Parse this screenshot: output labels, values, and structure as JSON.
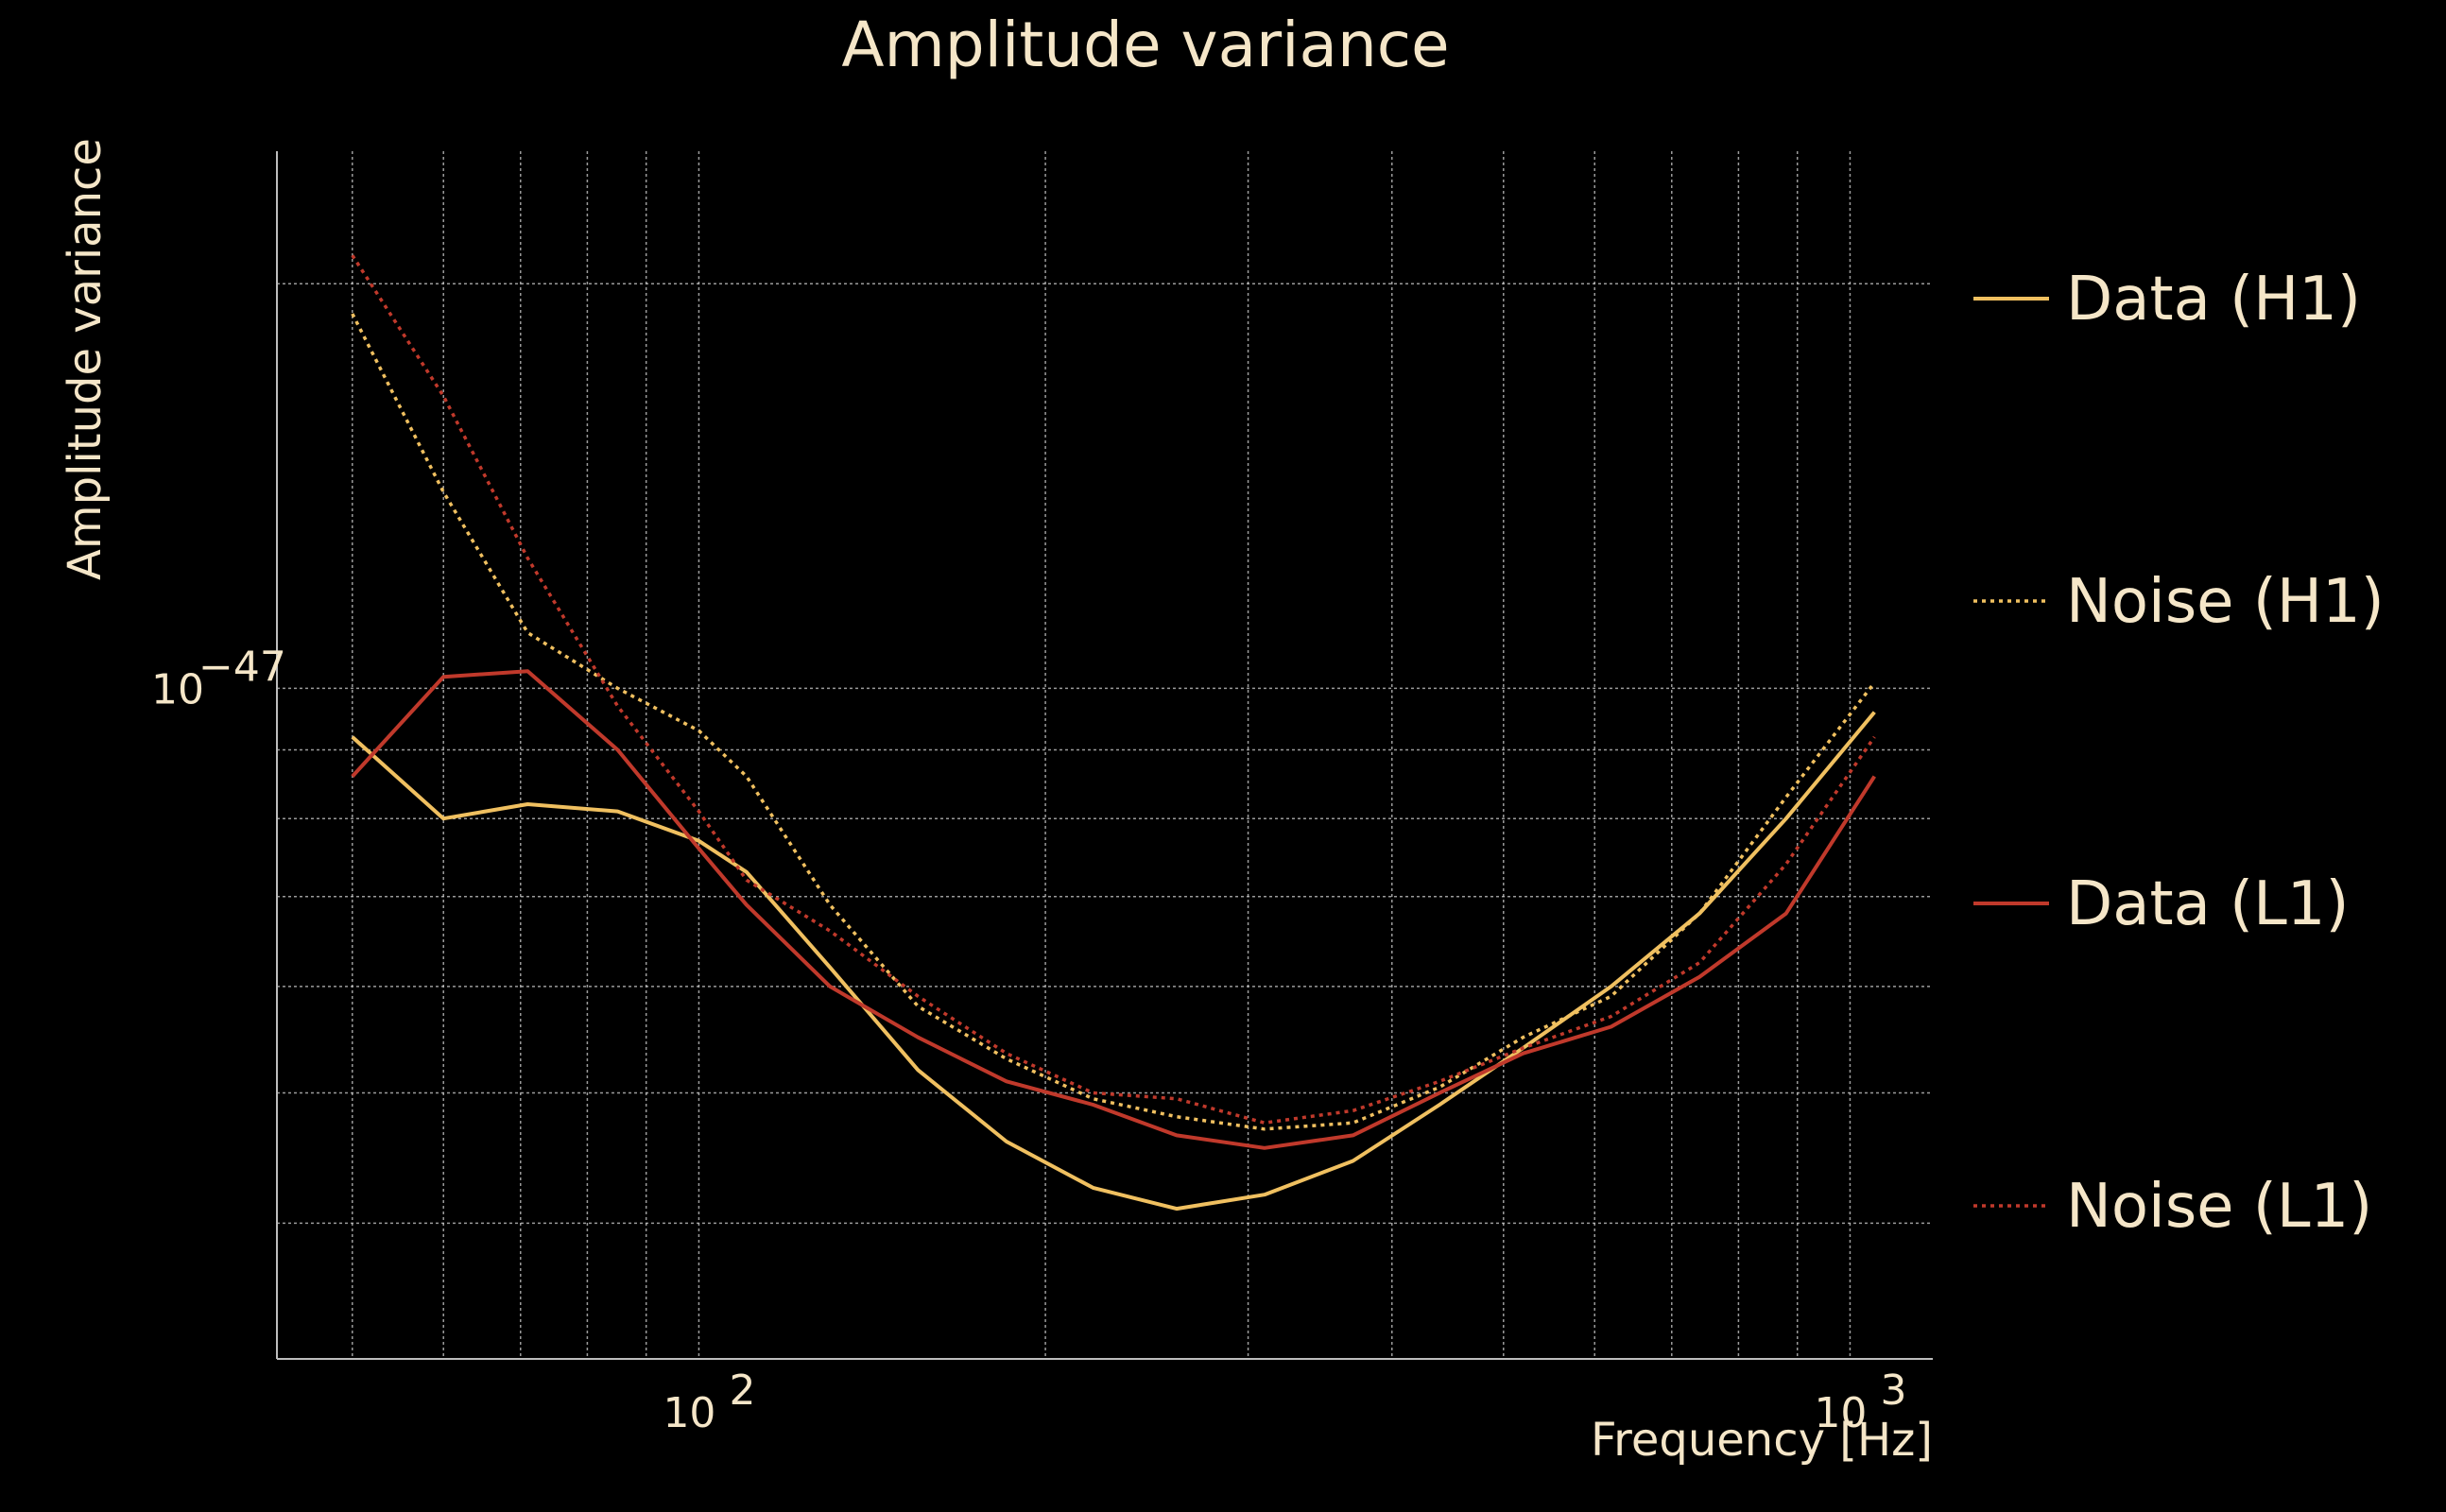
{
  "chart_data": {
    "type": "line",
    "title": "Amplitude variance",
    "xlabel": "Frequency [Hz]",
    "ylabel": "Amplitude variance",
    "xscale": "log",
    "yscale": "log",
    "xlim": [
      43,
      1180
    ],
    "ylim": [
      3.17e-48,
      2.51e-47
    ],
    "x_ticks": [
      {
        "value": 100,
        "base": "10",
        "exp": "2"
      },
      {
        "value": 1000,
        "base": "10",
        "exp": "3"
      }
    ],
    "y_ticks": [
      {
        "value": 1e-47,
        "base": "10",
        "exp": "−47"
      }
    ],
    "grid": true,
    "legend_position": "right",
    "series": [
      {
        "name": "Data (H1)",
        "color": "#f0c060",
        "style": "solid",
        "x": [
          50,
          60,
          71,
          85,
          100,
          110,
          130,
          155,
          185,
          220,
          260,
          310,
          370,
          440,
          520,
          620,
          740,
          880,
          1050
        ],
        "y": [
          9.2e-48,
          8e-48,
          8.2e-48,
          8.1e-48,
          7.7e-48,
          7.3e-48,
          6.2e-48,
          5.2e-48,
          4.6e-48,
          4.25e-48,
          4.1e-48,
          4.2e-48,
          4.45e-48,
          4.9e-48,
          5.4e-48,
          6e-48,
          6.8e-48,
          8e-48,
          9.6e-48
        ]
      },
      {
        "name": "Noise (H1)",
        "color": "#f0c060",
        "style": "dotted",
        "x": [
          50,
          60,
          71,
          85,
          100,
          110,
          130,
          155,
          185,
          220,
          260,
          310,
          370,
          440,
          520,
          620,
          740,
          880,
          1050
        ],
        "y": [
          1.9e-47,
          1.4e-47,
          1.1e-47,
          1e-47,
          9.3e-48,
          8.6e-48,
          6.9e-48,
          5.8e-48,
          5.3e-48,
          4.95e-48,
          4.8e-48,
          4.7e-48,
          4.75e-48,
          5.05e-48,
          5.5e-48,
          5.9e-48,
          6.8e-48,
          8.3e-48,
          1.01e-47
        ]
      },
      {
        "name": "Data (L1)",
        "color": "#c0392b",
        "style": "solid",
        "x": [
          50,
          60,
          71,
          85,
          100,
          110,
          130,
          155,
          185,
          220,
          260,
          310,
          370,
          440,
          520,
          620,
          740,
          880,
          1050
        ],
        "y": [
          8.6e-48,
          1.02e-47,
          1.03e-47,
          9e-48,
          7.6e-48,
          6.9e-48,
          6e-48,
          5.5e-48,
          5.1e-48,
          4.9e-48,
          4.65e-48,
          4.55e-48,
          4.65e-48,
          5e-48,
          5.35e-48,
          5.6e-48,
          6.1e-48,
          6.8e-48,
          8.6e-48
        ]
      },
      {
        "name": "Noise (L1)",
        "color": "#c0392b",
        "style": "dotted",
        "x": [
          50,
          60,
          71,
          85,
          100,
          110,
          130,
          155,
          185,
          220,
          260,
          310,
          370,
          440,
          520,
          620,
          740,
          880,
          1050
        ],
        "y": [
          2.1e-47,
          1.65e-47,
          1.25e-47,
          9.7e-48,
          8.1e-48,
          7.2e-48,
          6.6e-48,
          5.9e-48,
          5.35e-48,
          5e-48,
          4.95e-48,
          4.75e-48,
          4.85e-48,
          5.1e-48,
          5.4e-48,
          5.7e-48,
          6.25e-48,
          7.4e-48,
          9.2e-48
        ]
      }
    ]
  }
}
